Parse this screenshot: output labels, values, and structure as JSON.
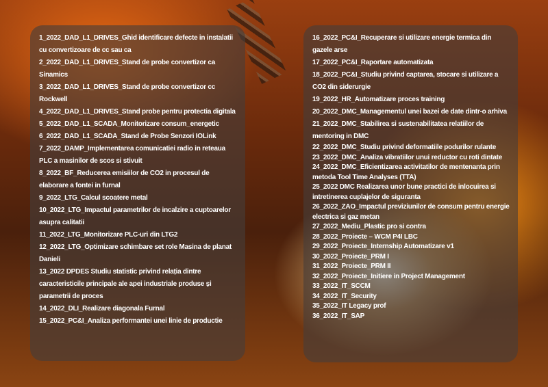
{
  "left_items": [
    "1_2022_DAD_L1_DRIVES_Ghid identificare defecte in instalatii cu convertizoare de cc sau ca",
    "2_2022_DAD_L1_DRIVES_Stand de probe convertizor ca Sinamics",
    "3_2022_DAD_L1_DRIVES_Stand de probe convertizor cc Rockwell",
    "4_2022_DAD_L1_DRIVES_Stand probe pentru protectia digitala",
    "5_2022_DAD_L1_SCADA_Monitorizare consum_energetic",
    "6_2022_DAD_L1_SCADA_Stand de Probe Senzori IOLink",
    "7_2022_DAMP_Implementarea comunicatiei radio in reteaua PLC a masinilor de scos si stivuit",
    "8_2022_BF_Reducerea emisiilor de CO2 in procesul de elaborare a fontei in furnal",
    "9_2022_LTG_Calcul scoatere metal",
    "10_2022_LTG_Impactul parametrilor de incalzire a cuptoarelor asupra calitatii",
    "11_2022_LTG_Monitorizare PLC-uri din LTG2",
    "12_2022_LTG_Optimizare schimbare set role Masina de planat Danieli",
    "13_2022  DPDES Studiu statistic privind relația dintre caracteristicile principale ale apei industriale produse și parametrii de proces",
    "14_2022_DLI_Realizare diagonala Furnal",
    "15_2022_PC&I_Analiza performantei unei linie de productie"
  ],
  "right_items": [
    "16_2022_PC&I_Recuperare si utilizare energie termica din gazele arse",
    "17_2022_PC&I_Raportare automatizata",
    "18_2022_PC&I_Studiu privind captarea, stocare si utilizare a CO2 din siderurgie",
    "19_2022_HR_Automatizare proces training",
    "20_2022_DMC_Managementul unei bazei de date dintr-o arhiva",
    "21_2022_DMC_Stabilirea si sustenabilitatea relatiilor de mentoring in DMC",
    "22_2022_DMC_Studiu privind deformatiile podurilor rulante",
    "23_2022_DMC_Analiza vibratiilor unui reductor cu roti dintate",
    "24_2022_DMC_Eficientizarea activitatilor de mentenanta prin metoda Tool Time Analyses (TTA)",
    "25_2022  DMC  Realizarea unor bune practici de inlocuirea si intretinerea cuplajelor de siguranta",
    "26_2022_ZAO_Impactul previziunilor de consum pentru energie electrica si gaz metan",
    "27_2022_Mediu_Plastic pro si contra",
    "28_2022_Proiecte – WCM P4I LBC",
    "29_2022_Proiecte_Internship Automatizare v1",
    "30_2022_Proiecte_PRM I",
    "31_2022_Proiecte_PRM II",
    "32_2022_Proiecte_Initiere in Project Management",
    "33_2022_IT_SCCM",
    "34_2022_IT_Security",
    "35_2022_IT Legacy prof",
    "36_2022_IT_SAP"
  ]
}
